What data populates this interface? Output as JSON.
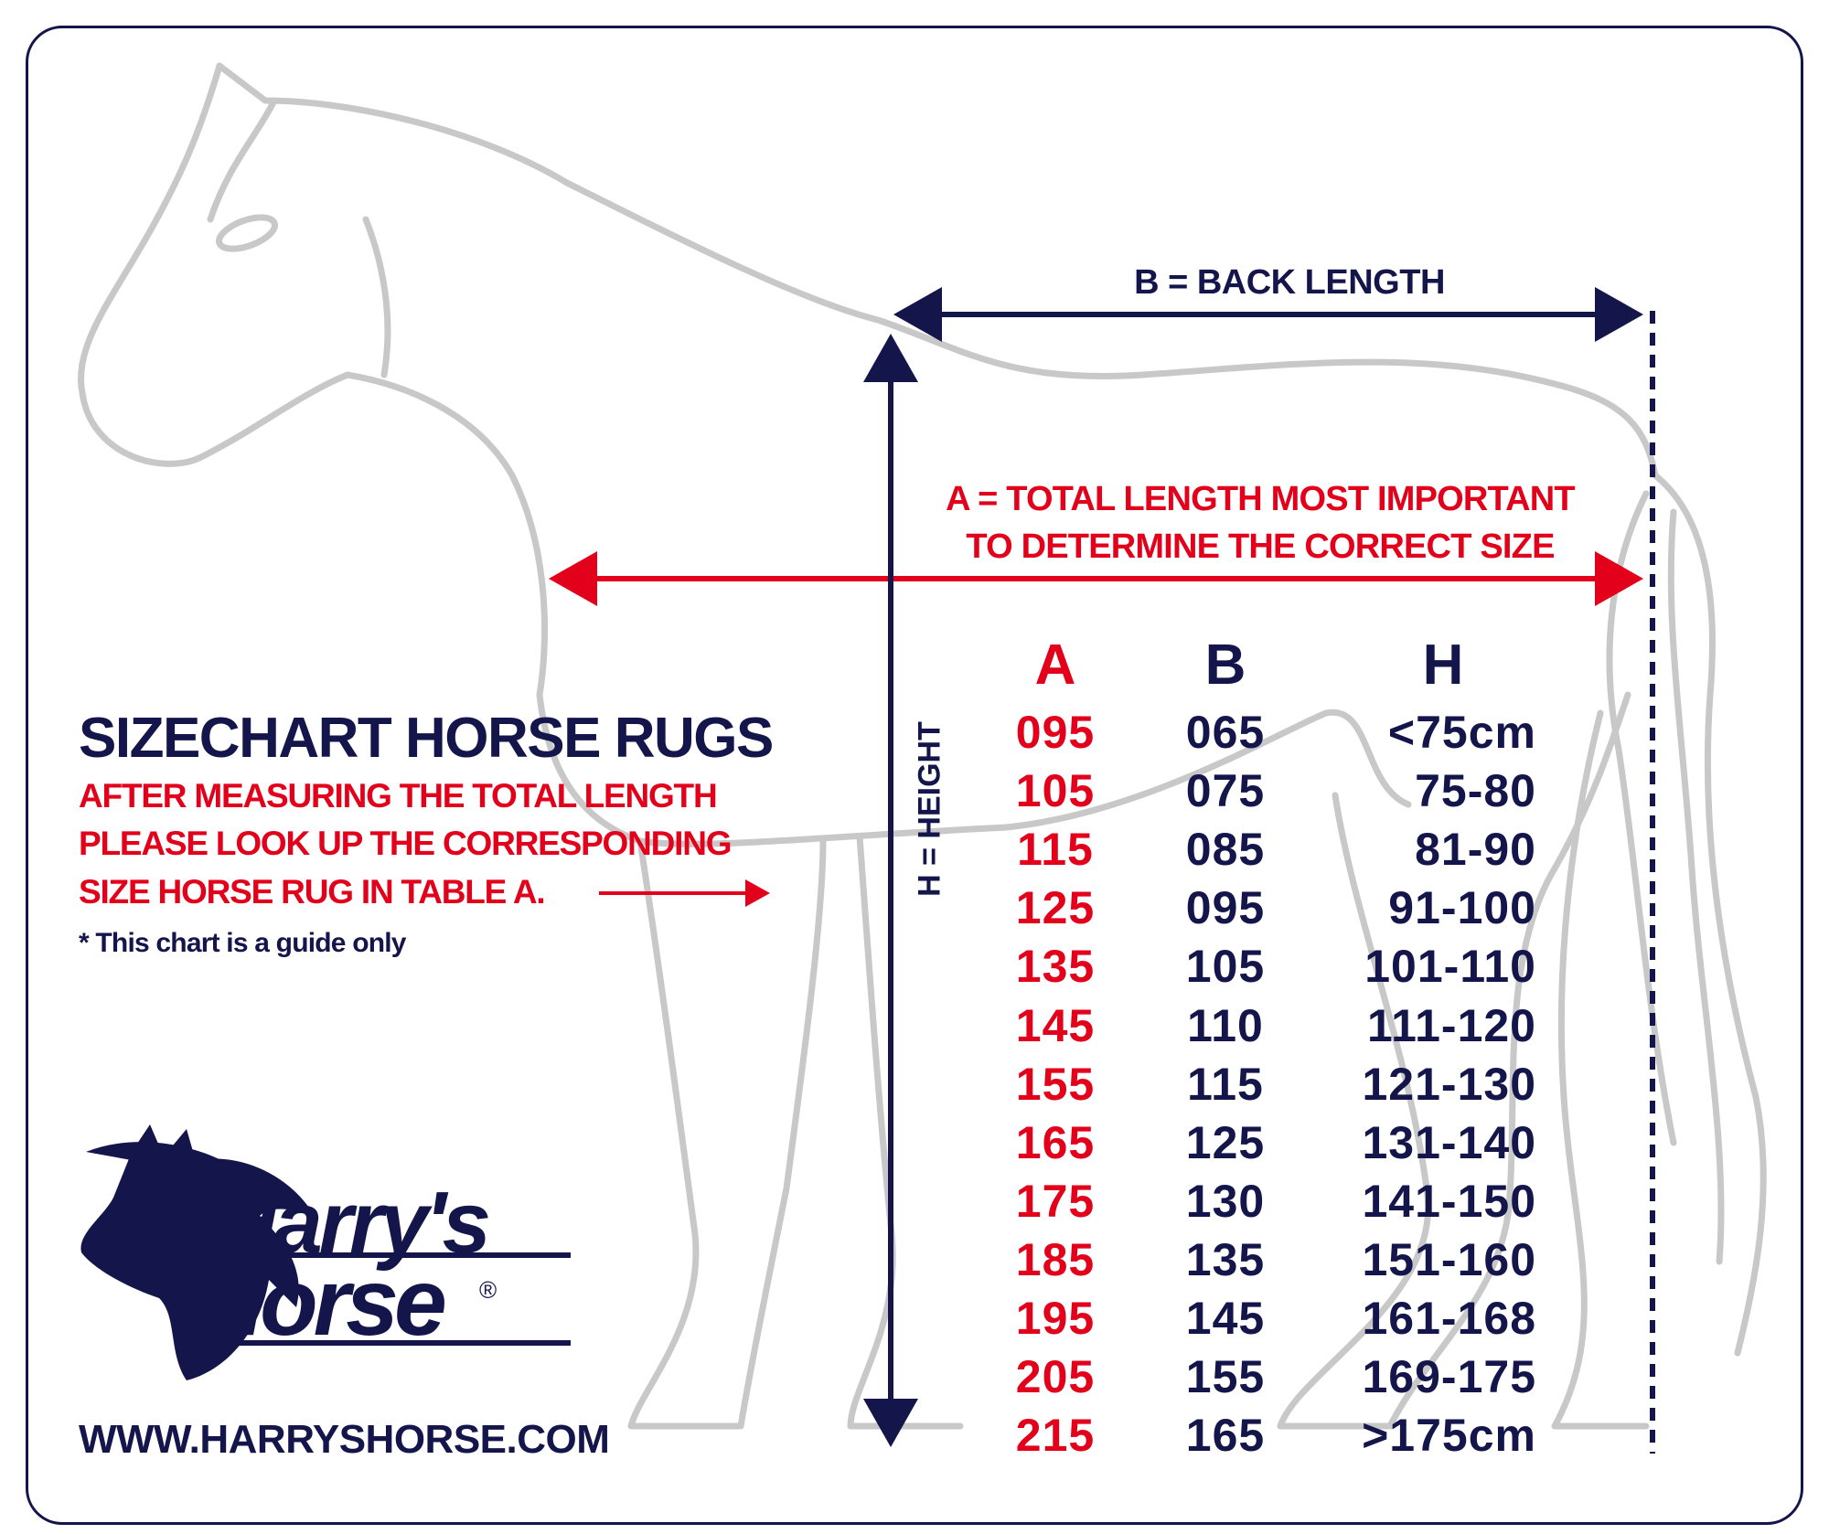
{
  "title": "SIZECHART HORSE RUGS",
  "instructions": [
    "AFTER MEASURING THE TOTAL LENGTH",
    "PLEASE LOOK UP THE CORRESPONDING",
    "SIZE HORSE RUG IN TABLE A."
  ],
  "note": "* This chart is a guide only",
  "website": "WWW.HARRYSHORSE.COM",
  "logo_text": "Harry's Horse®",
  "labels": {
    "back_length": "B = BACK LENGTH",
    "total_length_line1": "A = TOTAL LENGTH MOST IMPORTANT",
    "total_length_line2": "TO DETERMINE THE CORRECT SIZE",
    "height": "H = HEIGHT"
  },
  "colors": {
    "navy": "#14154a",
    "red": "#e2001a",
    "horse_outline": "#c8c8c8"
  },
  "chart_data": {
    "type": "table",
    "columns": [
      "A",
      "B",
      "H"
    ],
    "rows": [
      [
        "095",
        "065",
        "<75cm"
      ],
      [
        "105",
        "075",
        "75-80"
      ],
      [
        "115",
        "085",
        "81-90"
      ],
      [
        "125",
        "095",
        "91-100"
      ],
      [
        "135",
        "105",
        "101-110"
      ],
      [
        "145",
        "110",
        "111-120"
      ],
      [
        "155",
        "115",
        "121-130"
      ],
      [
        "165",
        "125",
        "131-140"
      ],
      [
        "175",
        "130",
        "141-150"
      ],
      [
        "185",
        "135",
        "151-160"
      ],
      [
        "195",
        "145",
        "161-168"
      ],
      [
        "205",
        "155",
        "169-175"
      ],
      [
        "215",
        "165",
        ">175cm"
      ]
    ]
  }
}
